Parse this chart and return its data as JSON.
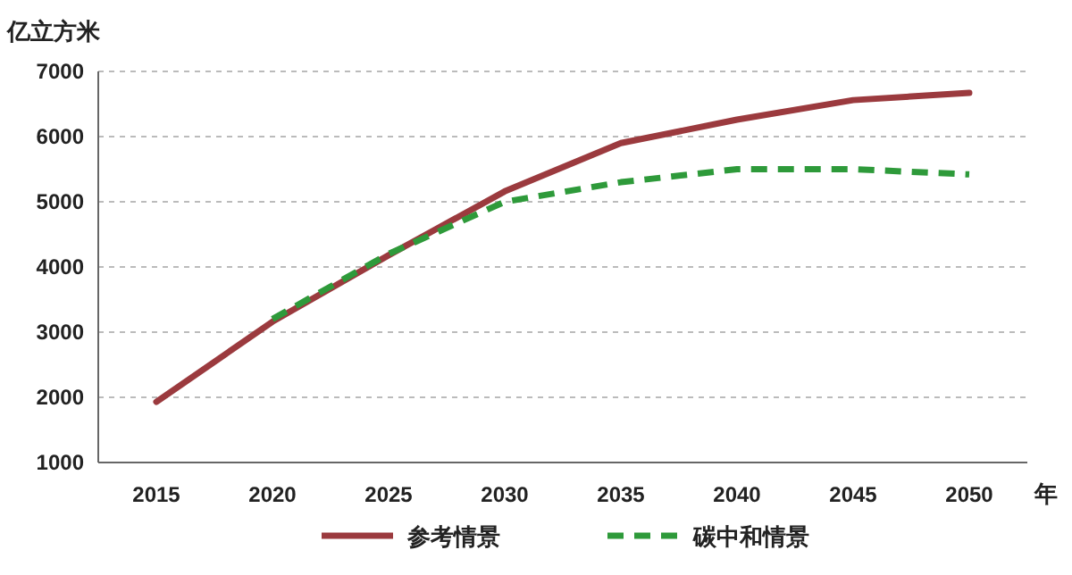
{
  "chart_data": {
    "type": "line",
    "ylabel": "亿立方米",
    "xlabel": "年",
    "categories": [
      "2015",
      "2020",
      "2025",
      "2030",
      "2035",
      "2040",
      "2045",
      "2050"
    ],
    "series": [
      {
        "name": "参考情景",
        "color": "#9b3a3e",
        "line_style": "solid",
        "values": [
          1930,
          3160,
          4180,
          5160,
          5900,
          6260,
          6560,
          6670
        ]
      },
      {
        "name": "碳中和情景",
        "color": "#2e9a3a",
        "line_style": "dashed",
        "values": [
          null,
          3200,
          4200,
          5000,
          5300,
          5500,
          5500,
          5420
        ]
      }
    ],
    "ylim": [
      1000,
      7000
    ],
    "yticks": [
      1000,
      2000,
      3000,
      4000,
      5000,
      6000,
      7000
    ],
    "grid": "y",
    "legend": "bottom"
  }
}
